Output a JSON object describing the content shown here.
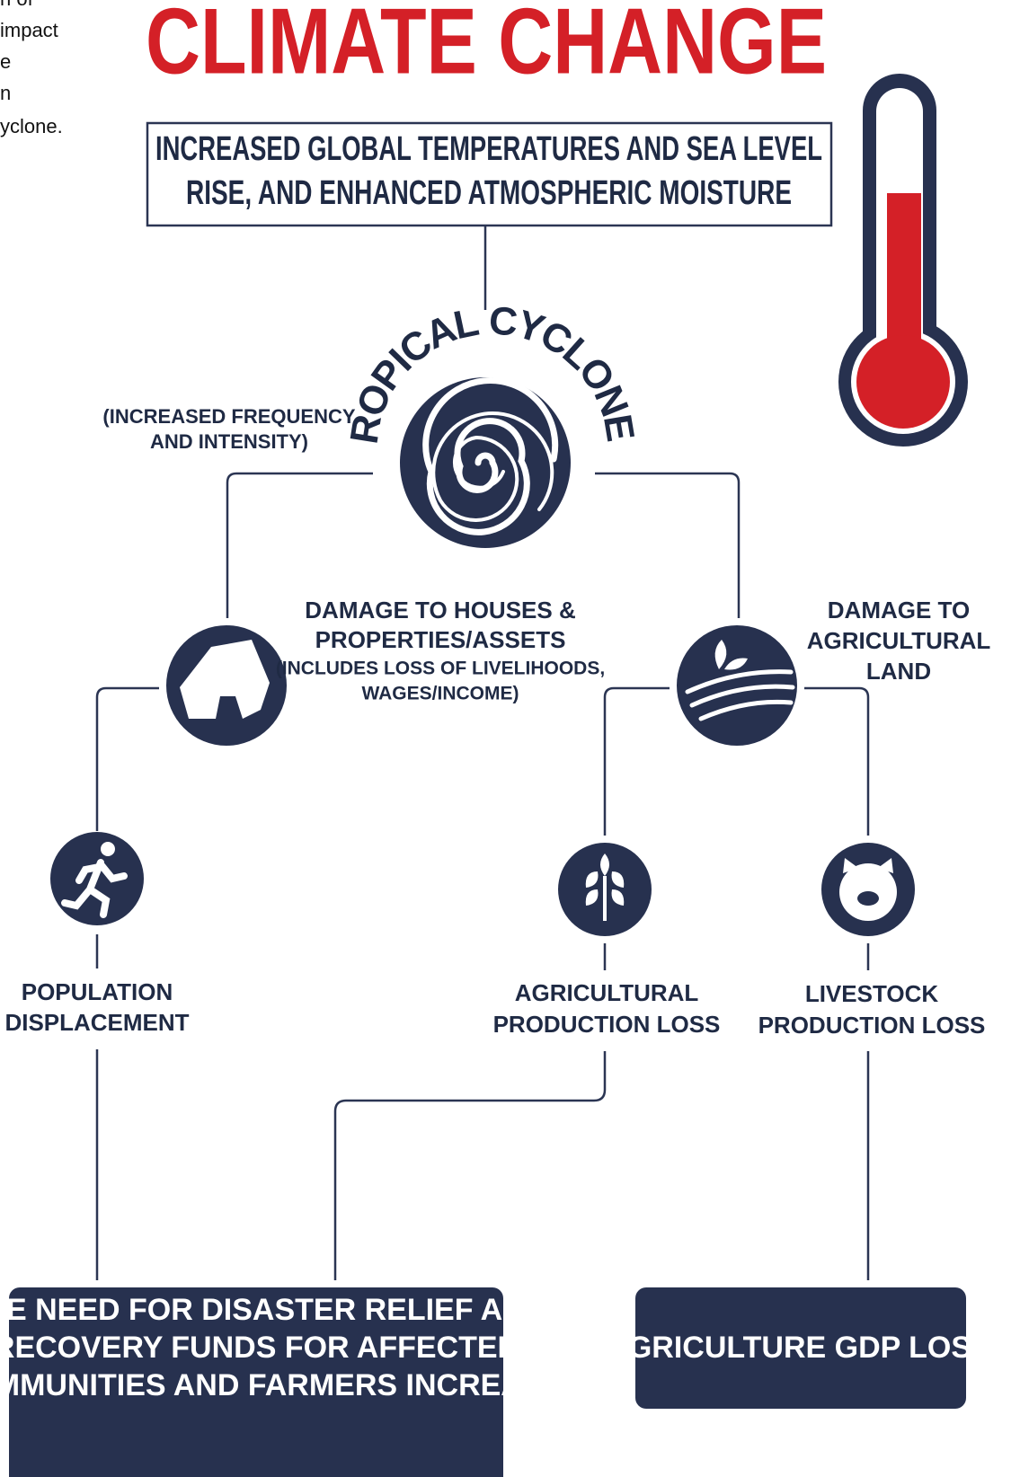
{
  "side_note": [
    "n of",
    "impact",
    "e",
    "n",
    "yclone."
  ],
  "title": "CLIMATE CHANGE",
  "cause": [
    "INCREASED GLOBAL TEMPERATURES AND SEA LEVEL",
    "RISE, AND ENHANCED ATMOSPHERIC MOISTURE"
  ],
  "hazard": {
    "label": "TROPICAL CYCLONES",
    "note": [
      "(INCREASED FREQUENCY",
      "AND INTENSITY)"
    ]
  },
  "nodes": [
    {
      "label": [
        "DAMAGE TO HOUSES &",
        "PROPERTIES/ASSETS"
      ],
      "note": [
        "(INCLUDES LOSS OF LIVELIHOODS,",
        "WAGES/INCOME)"
      ]
    },
    {
      "label": [
        "DAMAGE TO",
        "AGRICULTURAL",
        "LAND"
      ]
    },
    {
      "label": [
        "POPULATION",
        "DISPLACEMENT"
      ]
    },
    {
      "label": [
        "AGRICULTURAL",
        "PRODUCTION LOSS"
      ]
    },
    {
      "label": [
        "LIVESTOCK",
        "PRODUCTION LOSS"
      ]
    }
  ],
  "outcomes": [
    {
      "label": [
        "THE NEED FOR DISASTER RELIEF AND",
        "RECOVERY FUNDS FOR AFFECTED",
        "COMMUNITIES AND FARMERS INCREASE"
      ]
    },
    {
      "label": [
        "AGRICULTURE GDP LOSS"
      ]
    }
  ]
}
